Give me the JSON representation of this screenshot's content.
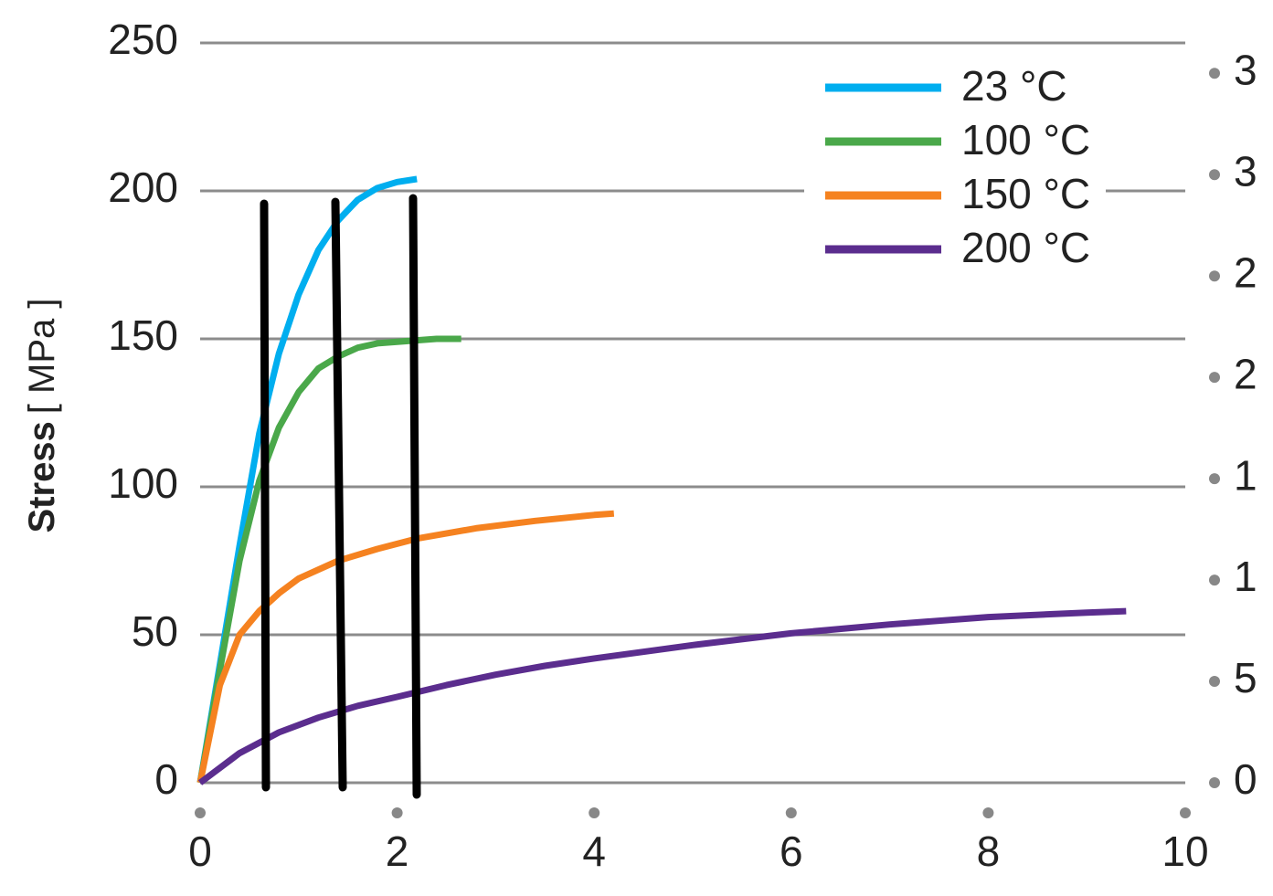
{
  "chart_data": {
    "type": "line",
    "y_label": "Stress",
    "y_label_unit": "[ MPa ]",
    "xlim": [
      0,
      10
    ],
    "xticks": [
      0,
      2,
      4,
      6,
      8,
      10
    ],
    "ylim": [
      0,
      250
    ],
    "yticks": [
      0,
      50,
      100,
      150,
      200,
      250
    ],
    "y2lim": [
      0,
      36.5
    ],
    "y2ticks": [
      0,
      5,
      {
        "value": 10,
        "label": "1"
      },
      {
        "value": 15,
        "label": "1"
      },
      {
        "value": 20,
        "label": "2"
      },
      {
        "value": 25,
        "label": "2"
      },
      {
        "value": 30,
        "label": "3"
      },
      {
        "value": 35,
        "label": "3"
      }
    ],
    "grid": true,
    "legend": "upper right",
    "series": [
      {
        "name": "23 °C",
        "color": "#00aeef",
        "x": [
          0,
          0.2,
          0.4,
          0.6,
          0.8,
          1.0,
          1.2,
          1.4,
          1.6,
          1.8,
          2.0,
          2.2
        ],
        "values": [
          0,
          40,
          80,
          118,
          145,
          165,
          180,
          190,
          197,
          201,
          203,
          204
        ]
      },
      {
        "name": "100 °C",
        "color": "#4aa84a",
        "x": [
          0,
          0.2,
          0.4,
          0.6,
          0.8,
          1.0,
          1.2,
          1.4,
          1.6,
          1.8,
          2.0,
          2.4,
          2.65
        ],
        "values": [
          0,
          38,
          75,
          102,
          120,
          132,
          140,
          144,
          147,
          148.5,
          149,
          150,
          150
        ]
      },
      {
        "name": "150 °C",
        "color": "#f58220",
        "x": [
          0,
          0.2,
          0.4,
          0.6,
          0.8,
          1.0,
          1.4,
          1.8,
          2.2,
          2.8,
          3.4,
          4.0,
          4.2
        ],
        "values": [
          0,
          33,
          50,
          58,
          64,
          69,
          75,
          79,
          82.5,
          86,
          88.5,
          90.5,
          91
        ]
      },
      {
        "name": "200 °C",
        "color": "#5b2d8e",
        "x": [
          0,
          0.4,
          0.8,
          1.2,
          1.6,
          2.0,
          2.5,
          3.0,
          3.5,
          4.0,
          5.0,
          6.0,
          7.0,
          8.0,
          9.0,
          9.4
        ],
        "values": [
          0,
          10,
          17,
          22,
          26,
          29,
          33,
          36.5,
          39.5,
          42,
          46.5,
          50.5,
          53.5,
          56,
          57.5,
          58
        ]
      }
    ]
  }
}
